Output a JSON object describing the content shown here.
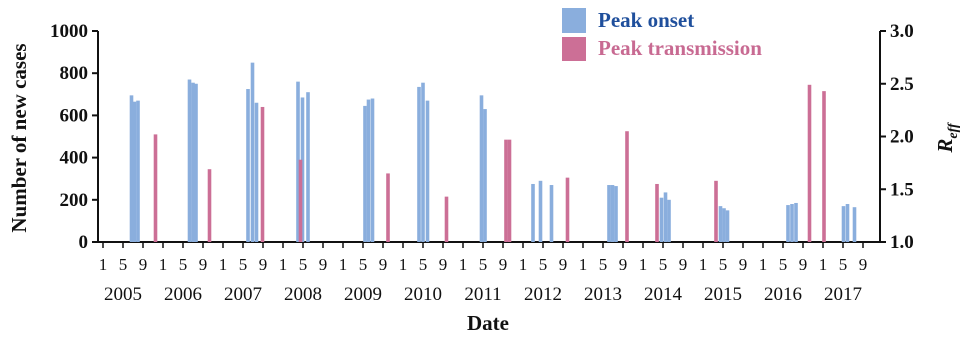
{
  "chart_data": {
    "type": "bar",
    "xlabel": "Date",
    "ylabel": "Number of new cases",
    "y2label_main": "R",
    "y2label_sub": "eff",
    "ylim": [
      0,
      1000
    ],
    "y_ticks": [
      0,
      200,
      400,
      600,
      800,
      1000
    ],
    "y2lim": [
      1.0,
      3.0
    ],
    "y2_ticks": [
      "1.0",
      "1.5",
      "2.0",
      "2.5",
      "3.0"
    ],
    "years": [
      "2005",
      "2006",
      "2007",
      "2008",
      "2009",
      "2010",
      "2011",
      "2012",
      "2013",
      "2014",
      "2015",
      "2016",
      "2017"
    ],
    "month_ticks": [
      "1",
      "5",
      "9"
    ],
    "legend_position": "top-right",
    "colors": {
      "onset": "#8aaedd",
      "transmission": "#cc6f96",
      "onset_text": "#1f4f9c",
      "transmission_text": "#c86a92"
    },
    "series": [
      {
        "name": "Peak onset",
        "axis": "left",
        "points": [
          {
            "year": 2005,
            "month": 6.7,
            "value": 695
          },
          {
            "year": 2005,
            "month": 7.3,
            "value": 665
          },
          {
            "year": 2005,
            "month": 8.0,
            "value": 670
          },
          {
            "year": 2006,
            "month": 6.3,
            "value": 770
          },
          {
            "year": 2006,
            "month": 7.0,
            "value": 755
          },
          {
            "year": 2006,
            "month": 7.6,
            "value": 750
          },
          {
            "year": 2007,
            "month": 6.0,
            "value": 725
          },
          {
            "year": 2007,
            "month": 6.9,
            "value": 850
          },
          {
            "year": 2007,
            "month": 7.7,
            "value": 660
          },
          {
            "year": 2008,
            "month": 4.0,
            "value": 760
          },
          {
            "year": 2008,
            "month": 4.9,
            "value": 685
          },
          {
            "year": 2008,
            "month": 6.0,
            "value": 710
          },
          {
            "year": 2009,
            "month": 5.4,
            "value": 645
          },
          {
            "year": 2009,
            "month": 6.1,
            "value": 675
          },
          {
            "year": 2009,
            "month": 6.9,
            "value": 680
          },
          {
            "year": 2010,
            "month": 4.2,
            "value": 735
          },
          {
            "year": 2010,
            "month": 5.0,
            "value": 755
          },
          {
            "year": 2010,
            "month": 5.9,
            "value": 670
          },
          {
            "year": 2011,
            "month": 4.7,
            "value": 695
          },
          {
            "year": 2011,
            "month": 5.4,
            "value": 630
          },
          {
            "year": 2012,
            "month": 3.0,
            "value": 275
          },
          {
            "year": 2012,
            "month": 4.5,
            "value": 290
          },
          {
            "year": 2012,
            "month": 6.7,
            "value": 270
          },
          {
            "year": 2013,
            "month": 6.2,
            "value": 270
          },
          {
            "year": 2013,
            "month": 6.9,
            "value": 270
          },
          {
            "year": 2013,
            "month": 7.6,
            "value": 265
          },
          {
            "year": 2014,
            "month": 4.7,
            "value": 210
          },
          {
            "year": 2014,
            "month": 5.5,
            "value": 235
          },
          {
            "year": 2014,
            "month": 6.2,
            "value": 200
          },
          {
            "year": 2015,
            "month": 4.5,
            "value": 170
          },
          {
            "year": 2015,
            "month": 5.2,
            "value": 160
          },
          {
            "year": 2015,
            "month": 5.9,
            "value": 150
          },
          {
            "year": 2016,
            "month": 6.0,
            "value": 175
          },
          {
            "year": 2016,
            "month": 6.8,
            "value": 180
          },
          {
            "year": 2016,
            "month": 7.6,
            "value": 185
          },
          {
            "year": 2017,
            "month": 5.1,
            "value": 170
          },
          {
            "year": 2017,
            "month": 5.9,
            "value": 180
          },
          {
            "year": 2017,
            "month": 7.3,
            "value": 165
          }
        ]
      },
      {
        "name": "Peak transmission",
        "axis": "right",
        "points": [
          {
            "year": 2005,
            "month": 11.5,
            "value": 2.02
          },
          {
            "year": 2006,
            "month": 10.3,
            "value": 1.69
          },
          {
            "year": 2007,
            "month": 8.9,
            "value": 2.28
          },
          {
            "year": 2008,
            "month": 4.5,
            "value": 1.78
          },
          {
            "year": 2009,
            "month": 10.0,
            "value": 1.65
          },
          {
            "year": 2010,
            "month": 9.7,
            "value": 1.43
          },
          {
            "year": 2011,
            "month": 9.6,
            "value": 1.97
          },
          {
            "year": 2011,
            "month": 10.3,
            "value": 1.97
          },
          {
            "year": 2012,
            "month": 9.9,
            "value": 1.61
          },
          {
            "year": 2013,
            "month": 9.8,
            "value": 2.05
          },
          {
            "year": 2014,
            "month": 3.8,
            "value": 1.55
          },
          {
            "year": 2015,
            "month": 3.6,
            "value": 1.58
          },
          {
            "year": 2016,
            "month": 10.3,
            "value": 2.49
          },
          {
            "year": 2017,
            "month": 1.2,
            "value": 2.43
          }
        ]
      }
    ]
  }
}
